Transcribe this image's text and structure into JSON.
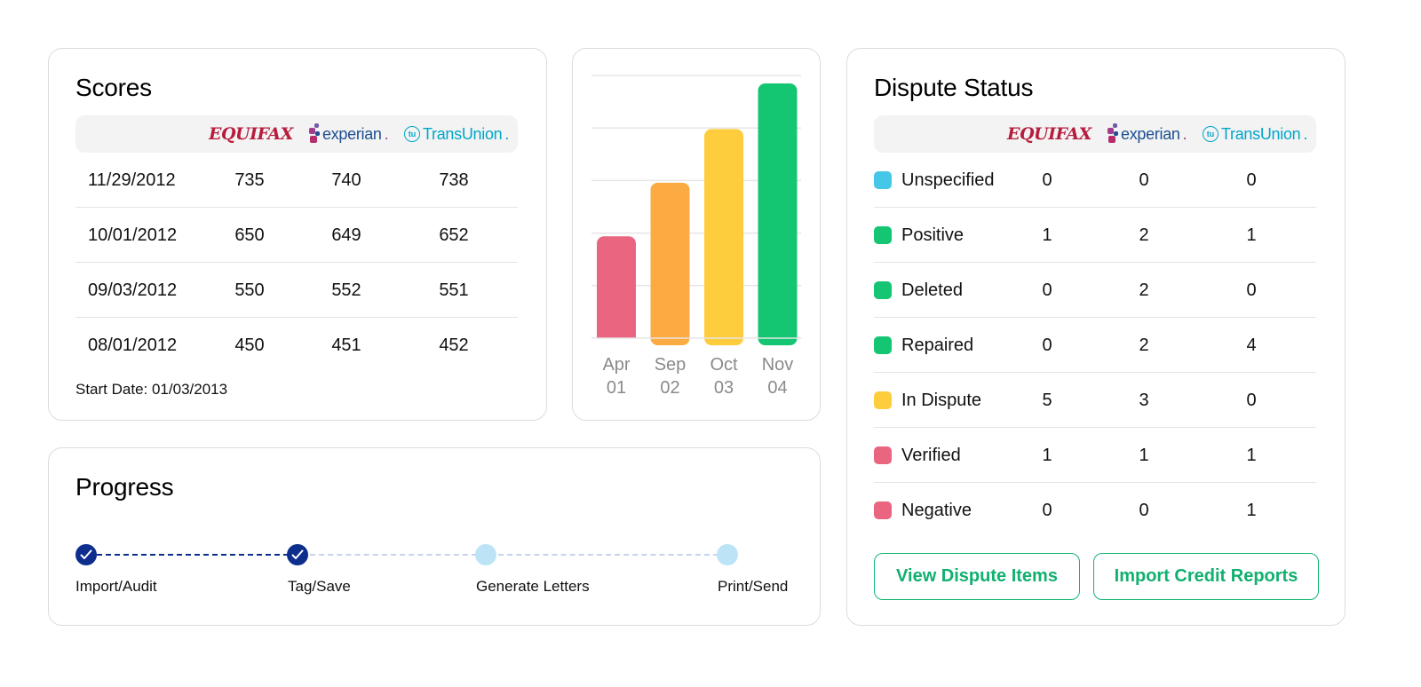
{
  "scores": {
    "title": "Scores",
    "bureaus": [
      "EQUIFAX",
      "experian",
      "TransUnion"
    ],
    "rows": [
      {
        "date": "11/29/2012",
        "equifax": "735",
        "experian": "740",
        "transunion": "738"
      },
      {
        "date": "10/01/2012",
        "equifax": "650",
        "experian": "649",
        "transunion": "652"
      },
      {
        "date": "09/03/2012",
        "equifax": "550",
        "experian": "552",
        "transunion": "551"
      },
      {
        "date": "08/01/2012",
        "equifax": "450",
        "experian": "451",
        "transunion": "452"
      }
    ],
    "start_date": "Start Date: 01/03/2013"
  },
  "chart_data": {
    "type": "bar",
    "categories": [
      "Apr 01",
      "Sep 02",
      "Oct 03",
      "Nov 04"
    ],
    "category_lines": [
      [
        "Apr",
        "01"
      ],
      [
        "Sep",
        "02"
      ],
      [
        "Oct",
        "03"
      ],
      [
        "Nov",
        "04"
      ]
    ],
    "values": [
      450,
      550,
      650,
      735
    ],
    "colors": [
      "#ea6580",
      "#fcab42",
      "#fdcd3e",
      "#14c671"
    ],
    "ylim": [
      260,
      750
    ],
    "grid": true,
    "title": "",
    "xlabel": "",
    "ylabel": ""
  },
  "dispute": {
    "title": "Dispute Status",
    "bureaus": [
      "EQUIFAX",
      "experian",
      "TransUnion"
    ],
    "rows": [
      {
        "label": "Unspecified",
        "color": "#45c8e8",
        "equifax": "0",
        "experian": "0",
        "transunion": "0"
      },
      {
        "label": "Positive",
        "color": "#14c671",
        "equifax": "1",
        "experian": "2",
        "transunion": "1"
      },
      {
        "label": "Deleted",
        "color": "#14c671",
        "equifax": "0",
        "experian": "2",
        "transunion": "0"
      },
      {
        "label": "Repaired",
        "color": "#14c671",
        "equifax": "0",
        "experian": "2",
        "transunion": "4"
      },
      {
        "label": "In Dispute",
        "color": "#fdcd3e",
        "equifax": "5",
        "experian": "3",
        "transunion": "0"
      },
      {
        "label": "Verified",
        "color": "#ea6580",
        "equifax": "1",
        "experian": "1",
        "transunion": "1"
      },
      {
        "label": "Negative",
        "color": "#ea6580",
        "equifax": "0",
        "experian": "0",
        "transunion": "1"
      }
    ],
    "view_button": "View Dispute Items",
    "import_button": "Import Credit Reports"
  },
  "progress": {
    "title": "Progress",
    "steps": [
      {
        "label": "Import/Audit",
        "done": true
      },
      {
        "label": "Tag/Save",
        "done": true
      },
      {
        "label": "Generate Letters",
        "done": false
      },
      {
        "label": "Print/Send",
        "done": false
      }
    ]
  }
}
